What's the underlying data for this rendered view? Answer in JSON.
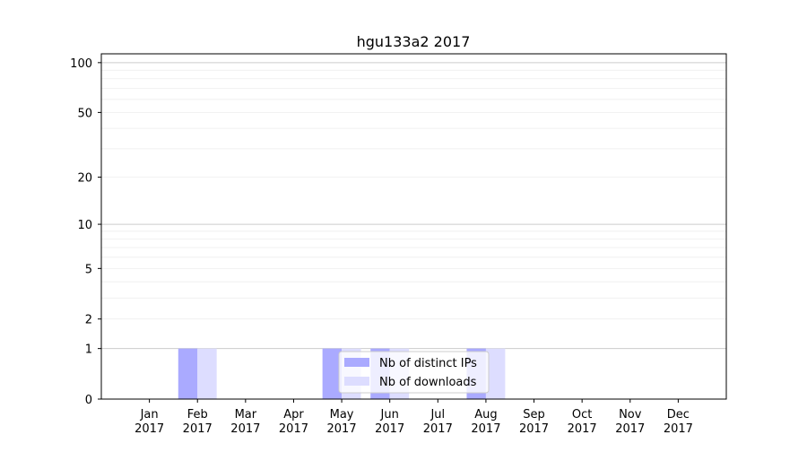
{
  "chart_data": {
    "type": "bar",
    "title": "hgu133a2 2017",
    "xlabel": "",
    "ylabel": "",
    "categories": [
      "Jan\n2017",
      "Feb\n2017",
      "Mar\n2017",
      "Apr\n2017",
      "May\n2017",
      "Jun\n2017",
      "Jul\n2017",
      "Aug\n2017",
      "Sep\n2017",
      "Oct\n2017",
      "Nov\n2017",
      "Dec\n2017"
    ],
    "series": [
      {
        "name": "Nb of distinct IPs",
        "color": "#aaaaff",
        "values": [
          0,
          1,
          0,
          0,
          1,
          1,
          0,
          1,
          0,
          0,
          0,
          0
        ]
      },
      {
        "name": "Nb of downloads",
        "color": "#ddddff",
        "values": [
          0,
          1,
          0,
          0,
          1,
          1,
          0,
          1,
          0,
          0,
          0,
          0
        ]
      }
    ],
    "yscale": "symlog",
    "ylim": [
      0,
      113
    ],
    "yticks": [
      0,
      1,
      2,
      5,
      10,
      20,
      50,
      100
    ],
    "ytick_labels": [
      "0",
      "1",
      "2",
      "5",
      "10",
      "20",
      "50",
      "100"
    ],
    "grid": true,
    "legend_position": "lower center"
  }
}
